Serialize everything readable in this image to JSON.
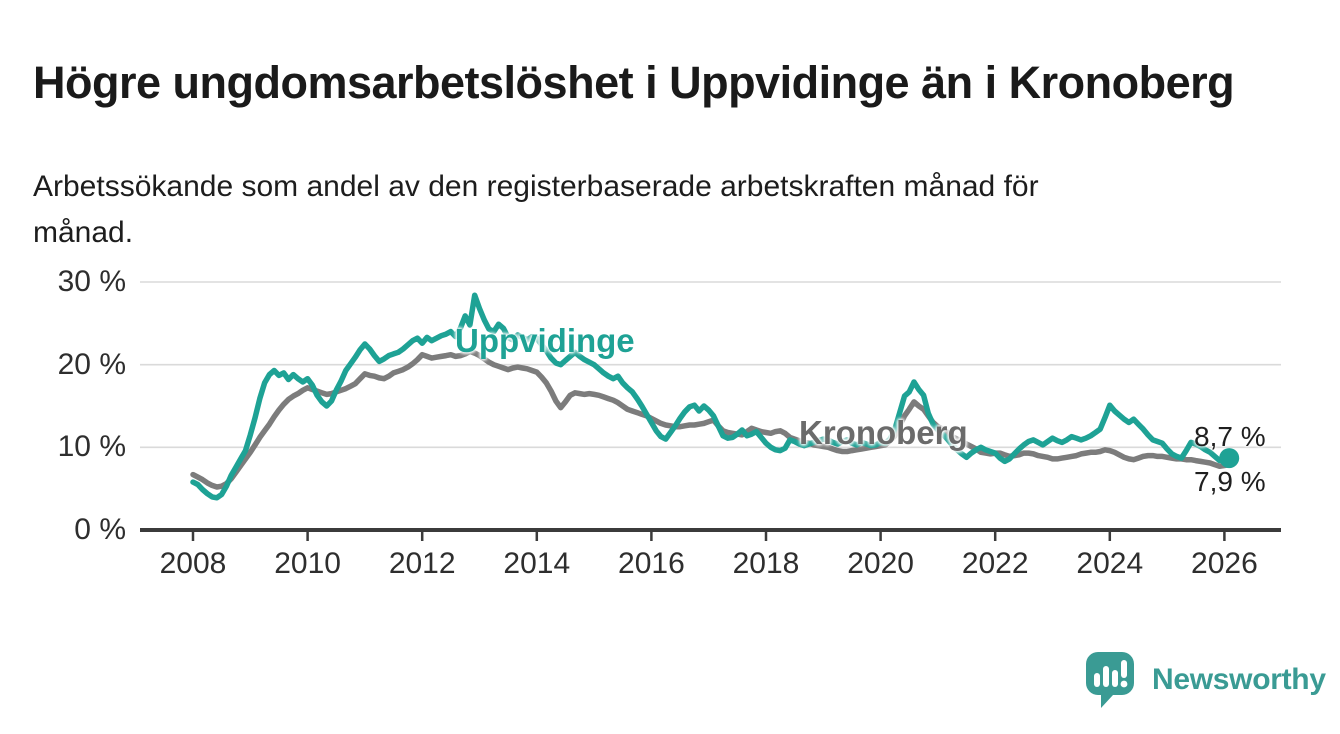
{
  "header": {
    "title": "Högre ungdomsarbetslöshet i Uppvidinge än i Kronoberg",
    "subtitle_line1": "Arbetssökande som andel av den registerbaserade arbetskraften månad för",
    "subtitle_line2": "månad."
  },
  "footer": {
    "brand": "Newsworthy",
    "logo_icon": "speech-bubble-bar-chart"
  },
  "colors": {
    "uppvidinge": "#1ea295",
    "kronoberg": "#7c7c7c",
    "kronoberg_label": "#6b6b6b",
    "grid": "#dadada",
    "axis": "#3b3b3b",
    "text": "#1a1a1a",
    "brand_teal": "#3a9b94"
  },
  "chart_data": {
    "type": "line",
    "title": "Högre ungdomsarbetslöshet i Uppvidinge än i Kronoberg",
    "subtitle": "Arbetssökande som andel av den registerbaserade arbetskraften månad för månad.",
    "unit": "%",
    "grid": true,
    "legend_position": "inline-labels",
    "x_axis": {
      "ticks": [
        2008,
        2010,
        2012,
        2014,
        2016,
        2018,
        2020,
        2022,
        2024,
        2026
      ],
      "labels": [
        "2008",
        "2010",
        "2012",
        "2014",
        "2016",
        "2018",
        "2020",
        "2022",
        "2024",
        "2026"
      ],
      "range": [
        2007.1,
        2027.0
      ]
    },
    "y_axis": {
      "ticks": [
        0,
        10,
        20,
        30
      ],
      "labels": [
        "0 %",
        "10 %",
        "20 %",
        "30 %"
      ],
      "range": [
        0,
        30
      ]
    },
    "series": [
      {
        "name": "Kronoberg",
        "color": "#7c7c7c",
        "label_color": "#6b6b6b",
        "end_label": "7,9 %",
        "end_value": 7.9,
        "end_dot": false,
        "x_start": 2008,
        "x_step": 0.0833333,
        "values": [
          6.7,
          6.4,
          6.1,
          5.7,
          5.4,
          5.2,
          5.3,
          5.6,
          6.2,
          7.0,
          7.8,
          8.6,
          9.4,
          10.3,
          11.2,
          12.0,
          12.8,
          13.7,
          14.5,
          15.2,
          15.8,
          16.2,
          16.5,
          16.9,
          17.2,
          17.0,
          16.8,
          16.6,
          16.4,
          16.5,
          16.7,
          16.9,
          17.1,
          17.4,
          17.7,
          18.3,
          18.9,
          18.7,
          18.6,
          18.4,
          18.3,
          18.6,
          19.0,
          19.2,
          19.4,
          19.7,
          20.1,
          20.6,
          21.2,
          21.0,
          20.8,
          20.9,
          21.0,
          21.1,
          21.2,
          21.0,
          21.1,
          21.3,
          21.6,
          21.4,
          21.1,
          20.7,
          20.3,
          20.0,
          19.8,
          19.6,
          19.4,
          19.6,
          19.7,
          19.6,
          19.5,
          19.3,
          19.1,
          18.5,
          17.8,
          16.8,
          15.6,
          14.8,
          15.5,
          16.3,
          16.6,
          16.5,
          16.4,
          16.5,
          16.4,
          16.3,
          16.1,
          15.9,
          15.7,
          15.4,
          15.0,
          14.6,
          14.4,
          14.2,
          14.0,
          13.8,
          13.5,
          13.2,
          12.9,
          12.7,
          12.6,
          12.5,
          12.5,
          12.6,
          12.7,
          12.7,
          12.8,
          12.9,
          13.1,
          13.3,
          12.6,
          12.0,
          11.8,
          11.7,
          11.6,
          11.5,
          11.9,
          12.3,
          12.1,
          11.9,
          11.8,
          11.7,
          11.9,
          12.0,
          11.7,
          11.2,
          11.0,
          10.8,
          10.6,
          10.5,
          10.3,
          10.2,
          10.1,
          10.0,
          9.8,
          9.6,
          9.5,
          9.5,
          9.6,
          9.7,
          9.8,
          9.9,
          10.0,
          10.1,
          10.2,
          10.3,
          10.8,
          11.4,
          12.6,
          13.8,
          14.6,
          15.5,
          15.0,
          14.6,
          13.8,
          13.0,
          12.5,
          12.2,
          11.8,
          11.3,
          11.0,
          10.7,
          10.4,
          10.1,
          9.8,
          9.4,
          9.3,
          9.2,
          9.3,
          9.3,
          9.1,
          8.9,
          9.0,
          9.1,
          9.3,
          9.3,
          9.2,
          9.0,
          8.9,
          8.8,
          8.6,
          8.6,
          8.7,
          8.8,
          8.9,
          9.0,
          9.2,
          9.3,
          9.4,
          9.4,
          9.5,
          9.7,
          9.6,
          9.4,
          9.1,
          8.8,
          8.6,
          8.5,
          8.7,
          8.9,
          9.0,
          9.0,
          8.9,
          8.9,
          8.8,
          8.7,
          8.6,
          8.6,
          8.5,
          8.5,
          8.4,
          8.3,
          8.2,
          8.1,
          7.9,
          7.7,
          7.8,
          7.9
        ]
      },
      {
        "name": "Uppvidinge",
        "color": "#1ea295",
        "label_color": "#1ea295",
        "end_label": "8,7 %",
        "end_value": 8.7,
        "end_dot": true,
        "x_start": 2008,
        "x_step": 0.0833333,
        "values": [
          5.8,
          5.5,
          4.9,
          4.4,
          4.0,
          3.9,
          4.3,
          5.3,
          6.6,
          7.6,
          8.6,
          9.6,
          11.5,
          13.6,
          15.9,
          17.8,
          18.8,
          19.3,
          18.7,
          19.0,
          18.2,
          18.8,
          18.3,
          17.9,
          18.3,
          17.5,
          16.3,
          15.5,
          15.0,
          15.6,
          16.9,
          18.0,
          19.3,
          20.1,
          20.9,
          21.8,
          22.5,
          21.9,
          21.1,
          20.4,
          20.7,
          21.1,
          21.3,
          21.5,
          21.9,
          22.4,
          22.9,
          23.2,
          22.6,
          23.3,
          22.9,
          23.2,
          23.5,
          23.7,
          24.0,
          23.4,
          24.4,
          25.9,
          24.8,
          28.4,
          26.8,
          25.4,
          24.3,
          24.0,
          24.9,
          24.4,
          23.3,
          23.0,
          23.6,
          23.3,
          23.0,
          23.4,
          23.2,
          22.4,
          21.7,
          20.8,
          20.2,
          20.0,
          20.5,
          21.0,
          21.5,
          21.0,
          20.6,
          20.3,
          20.0,
          19.5,
          19.0,
          18.6,
          18.3,
          18.6,
          17.8,
          17.2,
          16.7,
          15.9,
          15.0,
          14.0,
          13.0,
          12.0,
          11.3,
          11.0,
          11.8,
          12.6,
          13.5,
          14.3,
          14.9,
          15.1,
          14.4,
          15.0,
          14.5,
          13.8,
          12.6,
          11.4,
          11.1,
          11.2,
          11.6,
          12.1,
          11.4,
          11.6,
          11.9,
          11.2,
          10.5,
          10.0,
          9.7,
          9.6,
          9.9,
          10.9,
          10.7,
          10.4,
          10.2,
          10.4,
          10.6,
          10.8,
          11.0,
          10.9,
          10.6,
          10.4,
          10.7,
          10.9,
          10.5,
          10.3,
          10.6,
          10.4,
          10.2,
          10.3,
          10.6,
          10.5,
          11.0,
          12.2,
          14.2,
          16.2,
          16.7,
          17.9,
          17.0,
          16.3,
          14.1,
          12.8,
          12.1,
          11.6,
          11.0,
          10.3,
          9.7,
          9.2,
          8.8,
          9.3,
          9.7,
          10.0,
          9.7,
          9.5,
          9.3,
          8.7,
          8.3,
          8.6,
          9.2,
          9.8,
          10.3,
          10.7,
          10.9,
          10.6,
          10.3,
          10.7,
          11.1,
          10.8,
          10.6,
          10.9,
          11.3,
          11.1,
          10.9,
          11.1,
          11.4,
          11.8,
          12.2,
          13.6,
          15.1,
          14.4,
          13.9,
          13.4,
          13.0,
          13.4,
          12.8,
          12.2,
          11.5,
          10.9,
          10.7,
          10.5,
          9.8,
          9.2,
          8.9,
          8.7,
          9.6,
          10.6,
          10.4,
          10.1,
          9.7,
          9.4,
          8.9,
          8.4,
          8.5,
          8.7
        ]
      }
    ]
  }
}
